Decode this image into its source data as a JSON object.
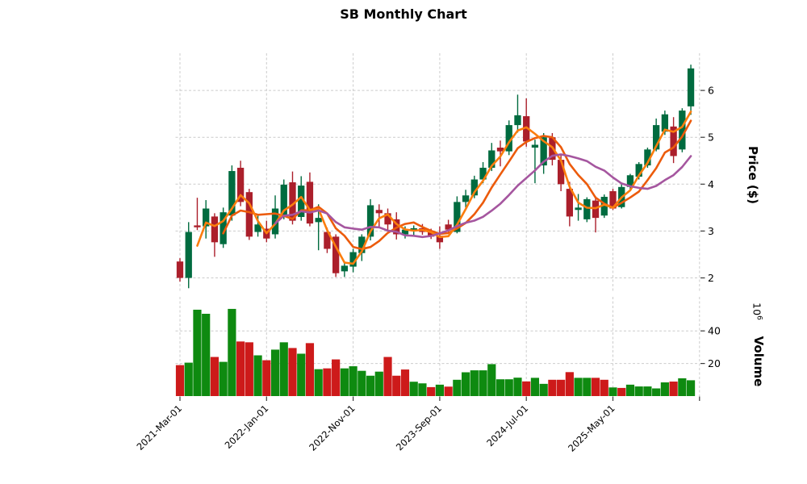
{
  "title": "SB Monthly Chart",
  "price_axis": {
    "label": "Price ($)",
    "ticks": [
      2,
      3,
      4,
      5,
      6
    ]
  },
  "volume_axis": {
    "label": "Volume",
    "offset_base": "10",
    "offset_exp": "6",
    "ticks": [
      20,
      40
    ]
  },
  "x_axis": {
    "tick_labels": [
      "2021-Mar-01",
      "2022-Jan-01",
      "2022-Nov-01",
      "2023-Sep-01",
      "2024-Jul-01",
      "2025-May-01"
    ],
    "labeled_tick_candle_indices": [
      0,
      10,
      20,
      30,
      40,
      50
    ],
    "gridline_candle_indices": [
      0,
      10,
      20,
      30,
      40,
      50,
      60
    ]
  },
  "colors": {
    "candle_up": "#006b3f",
    "candle_down": "#ab1f2b",
    "volume_up": "#0e8a10",
    "volume_down": "#cd1a1a",
    "ma_fast": "#fb7d0d",
    "ma_mid": "#ec5b0b",
    "ma_slow": "#a5569f",
    "grid": "#cccccc",
    "tick": "#3a3a3a",
    "text": "#000000"
  },
  "chart_data": {
    "type": "candlestick",
    "subplot": "volume-bar",
    "n_candles": 60,
    "interval": "monthly",
    "price_ylim": [
      1.65,
      6.85
    ],
    "volume_ylim": [
      0,
      61
    ],
    "grid": "dashed",
    "legend": "none",
    "open": [
      2.35,
      2.0,
      3.12,
      3.1,
      3.31,
      2.72,
      3.33,
      4.35,
      3.83,
      2.98,
      3.05,
      2.93,
      3.33,
      4.04,
      3.3,
      4.05,
      3.19,
      2.98,
      2.88,
      2.14,
      2.24,
      2.53,
      2.88,
      3.45,
      3.38,
      3.25,
      2.93,
      3.03,
      3.06,
      2.98,
      2.9,
      3.14,
      2.98,
      3.62,
      3.76,
      4.1,
      4.35,
      4.78,
      4.7,
      5.26,
      5.45,
      4.78,
      4.4,
      5.0,
      4.52,
      3.9,
      3.45,
      3.25,
      3.65,
      3.33,
      3.85,
      3.51,
      3.94,
      4.16,
      4.4,
      4.74,
      5.12,
      5.23,
      4.74,
      5.66
    ],
    "high": [
      2.42,
      3.19,
      3.71,
      3.66,
      3.38,
      3.5,
      4.4,
      4.5,
      3.9,
      3.33,
      3.22,
      3.76,
      4.1,
      4.27,
      4.17,
      4.25,
      3.57,
      3.07,
      2.93,
      2.33,
      2.62,
      2.93,
      3.68,
      3.57,
      3.48,
      3.4,
      3.1,
      3.12,
      3.15,
      3.05,
      3.1,
      3.24,
      3.74,
      3.88,
      4.18,
      4.47,
      4.88,
      4.93,
      5.36,
      5.91,
      5.83,
      4.95,
      5.09,
      5.09,
      4.62,
      4.05,
      3.79,
      3.72,
      3.74,
      3.78,
      3.9,
      4.02,
      4.22,
      4.47,
      4.78,
      5.4,
      5.57,
      5.43,
      5.62,
      6.55
    ],
    "low": [
      1.92,
      1.78,
      3.02,
      2.84,
      2.45,
      2.64,
      3.22,
      3.53,
      2.81,
      2.88,
      2.76,
      2.84,
      3.25,
      3.14,
      3.22,
      3.1,
      2.59,
      2.53,
      2.02,
      2.02,
      2.12,
      2.36,
      2.8,
      3.09,
      3.02,
      2.82,
      2.84,
      2.88,
      2.92,
      2.83,
      2.62,
      2.98,
      2.95,
      3.5,
      3.7,
      4.02,
      4.28,
      4.38,
      4.62,
      5.1,
      4.8,
      4.02,
      4.22,
      4.4,
      3.85,
      3.1,
      3.22,
      3.19,
      2.97,
      3.28,
      3.45,
      3.48,
      3.88,
      4.1,
      4.35,
      4.7,
      5.05,
      4.45,
      4.68,
      5.48
    ],
    "close": [
      2.0,
      2.98,
      3.08,
      3.48,
      2.76,
      3.4,
      4.28,
      3.62,
      2.88,
      3.14,
      2.84,
      3.48,
      3.99,
      3.22,
      3.97,
      3.16,
      3.28,
      2.62,
      2.1,
      2.26,
      2.55,
      2.88,
      3.55,
      3.38,
      3.14,
      2.93,
      3.03,
      3.06,
      2.98,
      2.88,
      2.76,
      3.03,
      3.62,
      3.76,
      4.1,
      4.35,
      4.72,
      4.7,
      5.26,
      5.47,
      4.91,
      4.84,
      5.0,
      4.52,
      4.0,
      3.31,
      3.5,
      3.68,
      3.28,
      3.73,
      3.48,
      3.94,
      4.19,
      4.43,
      4.74,
      5.26,
      5.49,
      4.6,
      5.57,
      6.47
    ],
    "volume_millions": [
      19.0,
      20.5,
      53.0,
      50.5,
      24.0,
      21.0,
      53.5,
      33.5,
      33.0,
      25.0,
      22.0,
      28.5,
      33.0,
      29.5,
      26.0,
      32.5,
      16.5,
      17.0,
      22.5,
      17.0,
      18.3,
      15.5,
      12.5,
      15.0,
      24.0,
      12.5,
      16.3,
      8.8,
      7.8,
      5.5,
      7.0,
      5.8,
      10.0,
      14.6,
      15.8,
      15.8,
      19.6,
      10.3,
      10.3,
      11.3,
      9.0,
      11.2,
      7.5,
      10.0,
      10.0,
      14.7,
      11.2,
      11.2,
      11.2,
      10.0,
      5.3,
      5.0,
      7.0,
      5.9,
      5.9,
      4.7,
      8.4,
      8.9,
      10.9,
      9.7
    ],
    "volume_up": [
      0,
      1,
      1,
      1,
      0,
      1,
      1,
      0,
      0,
      1,
      0,
      1,
      1,
      0,
      1,
      0,
      1,
      0,
      0,
      1,
      1,
      1,
      1,
      1,
      0,
      0,
      0,
      1,
      1,
      0,
      1,
      0,
      1,
      1,
      1,
      1,
      1,
      1,
      1,
      1,
      0,
      1,
      1,
      0,
      0,
      0,
      1,
      1,
      0,
      0,
      1,
      0,
      1,
      1,
      1,
      1,
      1,
      0,
      1,
      1
    ],
    "moving_averages": [
      {
        "name": "ma-fast",
        "window": 3,
        "color_key": "ma_fast"
      },
      {
        "name": "ma-mid",
        "window": 6,
        "color_key": "ma_mid"
      },
      {
        "name": "ma-slow",
        "window": 12,
        "color_key": "ma_slow"
      }
    ]
  }
}
